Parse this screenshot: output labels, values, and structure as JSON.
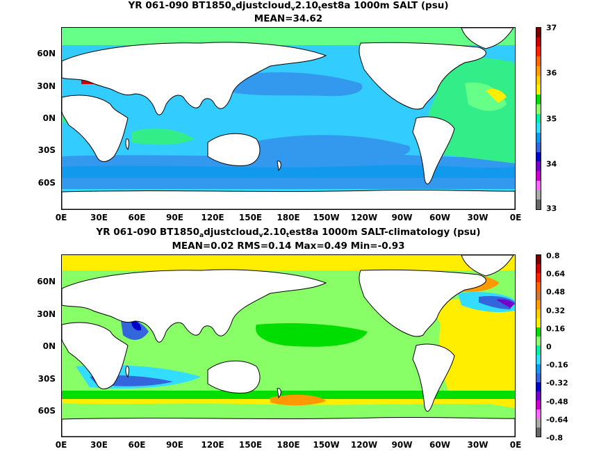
{
  "top": {
    "title_a": "YR 061-090 BT1850",
    "title_sub1": "a",
    "title_b": "djustcloud",
    "title_sub2": "v",
    "title_c": "2.10",
    "title_sub3": "t",
    "title_d": "est8a 1000m SALT (psu)",
    "stats": "MEAN=34.62",
    "colorbar": {
      "labels": [
        "37",
        "36",
        "35",
        "34",
        "33"
      ],
      "colors": [
        "#7a0000",
        "#cc0000",
        "#ff2000",
        "#ff6600",
        "#ff9900",
        "#ffcc00",
        "#ffee00",
        "#00dd00",
        "#88ff66",
        "#00eeaa",
        "#33ddff",
        "#1199ee",
        "#3366dd",
        "#0000cc",
        "#7700cc",
        "#cc00cc",
        "#ff66ff",
        "#aaaaaa",
        "#666666"
      ]
    },
    "colors": {
      "ocean_base": "#33ccff",
      "deep_blue": "#3399ee",
      "green": "#33ee88",
      "light_green": "#66ff88",
      "bright_green": "#55ff55",
      "yellow": "#ffee00",
      "red": "#cc0000",
      "purple": "#cc33cc"
    }
  },
  "bottom": {
    "title_a": "YR 061-090 BT1850",
    "title_sub1": "a",
    "title_b": "djustcloud",
    "title_sub2": "v",
    "title_c": "2.10",
    "title_sub3": "t",
    "title_d": "est8a 1000m SALT-climatology (psu)",
    "stats": "MEAN=0.02   RMS=0.14   Max=0.49   Min=-0.93",
    "colorbar": {
      "labels": [
        "0.8",
        "0.64",
        "0.48",
        "0.32",
        "0.16",
        "0",
        "-0.16",
        "-0.32",
        "-0.48",
        "-0.64",
        "-0.8"
      ],
      "colors": [
        "#7a0000",
        "#cc0000",
        "#ff2000",
        "#ff6600",
        "#cc7733",
        "#ff9900",
        "#ffcc00",
        "#ffee00",
        "#00dd00",
        "#88ff66",
        "#00eeaa",
        "#33ddff",
        "#1199ee",
        "#3366dd",
        "#0000cc",
        "#7700cc",
        "#cc00cc",
        "#ff66ff",
        "#aaaaaa",
        "#666666"
      ]
    },
    "colors": {
      "ocean_base": "#88ff66",
      "green": "#00dd00",
      "yellow": "#ffee00",
      "orange": "#ff9900",
      "cyan": "#33ddff",
      "blue": "#3366dd",
      "purple": "#7700cc"
    }
  },
  "axes": {
    "lat_labels": [
      "60N",
      "30N",
      "0N",
      "30S",
      "60S"
    ],
    "lon_labels": [
      "0E",
      "30E",
      "60E",
      "90E",
      "120E",
      "150E",
      "180E",
      "150W",
      "120W",
      "90W",
      "60W",
      "30W",
      "0E"
    ]
  }
}
